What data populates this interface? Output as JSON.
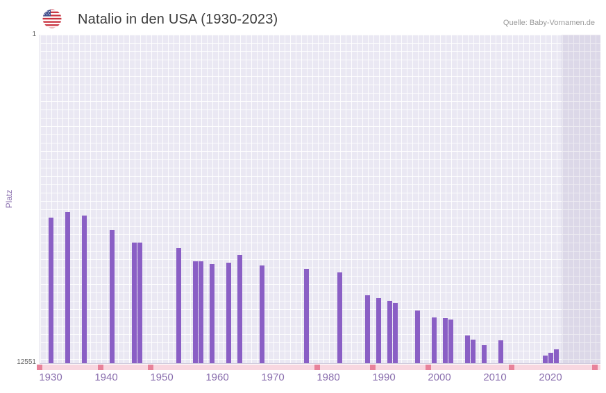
{
  "header": {
    "title": "Natalio in den USA (1930-2023)",
    "source": "Quelle: Baby-Vornamen.de"
  },
  "axes": {
    "y_label": "Platz",
    "y_top_label": "1",
    "y_bottom_label": "12551"
  },
  "colors": {
    "bar": "#8a5fc5",
    "plot_bg": "#eae8f3",
    "grid": "#ffffff",
    "no_data_strip": "#f8d7e0",
    "no_data_mark": "#e8829a",
    "axis_label": "#8a6fae",
    "y_tick": "#666666",
    "title": "#3c3c3c",
    "source": "#999999",
    "recent_shade": "rgba(120,110,160,0.12)"
  },
  "chart_data": {
    "type": "bar",
    "title": "Natalio in den USA (1930-2023)",
    "xlabel": "",
    "ylabel": "Platz",
    "y_axis_inverted": true,
    "x_range": [
      1928,
      2029
    ],
    "y_range": [
      1,
      12551
    ],
    "x_ticks": [
      1930,
      1940,
      1950,
      1960,
      1970,
      1980,
      1990,
      2000,
      2010,
      2020
    ],
    "points": [
      {
        "year": 1930,
        "rank": 7000
      },
      {
        "year": 1933,
        "rank": 6780
      },
      {
        "year": 1936,
        "rank": 6900
      },
      {
        "year": 1941,
        "rank": 7480
      },
      {
        "year": 1945,
        "rank": 7940
      },
      {
        "year": 1946,
        "rank": 7940
      },
      {
        "year": 1953,
        "rank": 8150
      },
      {
        "year": 1956,
        "rank": 8650
      },
      {
        "year": 1957,
        "rank": 8650
      },
      {
        "year": 1959,
        "rank": 8760
      },
      {
        "year": 1962,
        "rank": 8700
      },
      {
        "year": 1964,
        "rank": 8420
      },
      {
        "year": 1968,
        "rank": 8810
      },
      {
        "year": 1976,
        "rank": 8940
      },
      {
        "year": 1982,
        "rank": 9070
      },
      {
        "year": 1987,
        "rank": 9950
      },
      {
        "year": 1989,
        "rank": 10050
      },
      {
        "year": 1991,
        "rank": 10160
      },
      {
        "year": 1992,
        "rank": 10240
      },
      {
        "year": 1996,
        "rank": 10530
      },
      {
        "year": 1999,
        "rank": 10790
      },
      {
        "year": 2001,
        "rank": 10820
      },
      {
        "year": 2002,
        "rank": 10870
      },
      {
        "year": 2005,
        "rank": 11480
      },
      {
        "year": 2006,
        "rank": 11640
      },
      {
        "year": 2008,
        "rank": 11850
      },
      {
        "year": 2011,
        "rank": 11690
      },
      {
        "year": 2019,
        "rank": 12270
      },
      {
        "year": 2020,
        "rank": 12160
      },
      {
        "year": 2021,
        "rank": 12030
      }
    ],
    "no_data_years": [
      1928,
      1939,
      1948,
      1978,
      1988,
      1998,
      2013,
      2028
    ],
    "shaded_from_year": 2022,
    "legend": "none",
    "grid": true
  }
}
